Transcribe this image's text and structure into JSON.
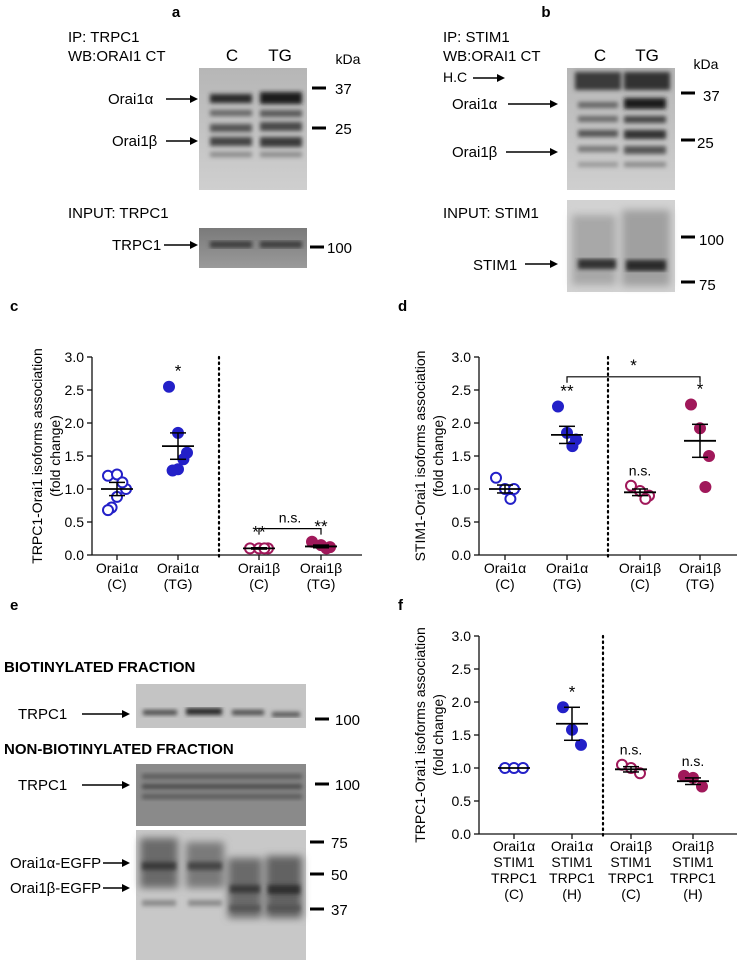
{
  "panels": {
    "a": {
      "letter": "a",
      "ip": "IP: TRPC1",
      "wb": "WB:ORAI1 CT",
      "lanes": [
        "C",
        "TG"
      ],
      "kda": "kDa",
      "bands": [
        "Orai1α",
        "Orai1β"
      ],
      "markers": [
        "37",
        "25"
      ],
      "input": "INPUT: TRPC1",
      "input_band": "TRPC1",
      "input_marker": "100"
    },
    "b": {
      "letter": "b",
      "ip": "IP: STIM1",
      "wb": "WB:ORAI1 CT",
      "lanes": [
        "C",
        "TG"
      ],
      "kda": "kDa",
      "bands": [
        "H.C",
        "Orai1α",
        "Orai1β"
      ],
      "markers": [
        "37",
        "25"
      ],
      "input": "INPUT: STIM1",
      "input_band": "STIM1",
      "input_markers": [
        "100",
        "75"
      ]
    },
    "e": {
      "letter": "e",
      "biot_title": "BIOTINYLATED FRACTION",
      "nonbiot_title": "NON-BIOTINYLATED FRACTION",
      "biot_band": "TRPC1",
      "biot_marker": "100",
      "nonbiot_band": "TRPC1",
      "nonbiot_marker": "100",
      "egfp_bands": [
        "Orai1α-EGFP",
        "Orai1β-EGFP"
      ],
      "egfp_markers": [
        "75",
        "50",
        "37"
      ]
    }
  },
  "colors": {
    "blue": "#2320c8",
    "magenta": "#a0185a",
    "axis": "#111111"
  },
  "chart_data": [
    {
      "panel": "c",
      "type": "scatter",
      "ylabel": "TRPC1-Orai1 isoforms association",
      "ylabel2": "(fold change)",
      "ylim": [
        0,
        3.0
      ],
      "yticks": [
        "0.0",
        "0.5",
        "1.0",
        "1.5",
        "2.0",
        "2.5",
        "3.0"
      ],
      "groups": [
        {
          "label1": "Orai1α",
          "label2": "(C)",
          "color": "blue",
          "filled": false,
          "values": [
            1.2,
            1.22,
            1.0,
            1.1,
            0.88,
            0.72,
            0.68
          ],
          "mean": 1.0,
          "sem": 0.1,
          "sig": ""
        },
        {
          "label1": "Orai1α",
          "label2": "(TG)",
          "color": "blue",
          "filled": true,
          "values": [
            2.55,
            1.85,
            1.55,
            1.45,
            1.3,
            1.28
          ],
          "mean": 1.65,
          "sem": 0.2,
          "sig": "*"
        },
        {
          "label1": "Orai1β",
          "label2": "(C)",
          "color": "magenta",
          "filled": false,
          "values": [
            0.1,
            0.1,
            0.1,
            0.1
          ],
          "mean": 0.1,
          "sem": 0.01,
          "sig": "**"
        },
        {
          "label1": "Orai1β",
          "label2": "(TG)",
          "color": "magenta",
          "filled": true,
          "values": [
            0.2,
            0.15,
            0.12,
            0.1
          ],
          "mean": 0.13,
          "sem": 0.02,
          "sig": "**"
        }
      ],
      "divider_after": 2,
      "bracket": {
        "from": 2,
        "to": 3,
        "y": 0.4,
        "label": "n.s."
      }
    },
    {
      "panel": "d",
      "type": "scatter",
      "ylabel": "STIM1-Orai1 isoforms association",
      "ylabel2": "(fold change)",
      "ylim": [
        0,
        3.0
      ],
      "yticks": [
        "0.0",
        "0.5",
        "1.0",
        "1.5",
        "2.0",
        "2.5",
        "3.0"
      ],
      "groups": [
        {
          "label1": "Orai1α",
          "label2": "(C)",
          "color": "blue",
          "filled": false,
          "values": [
            1.17,
            1.0,
            1.0,
            0.85
          ],
          "mean": 1.0,
          "sem": 0.06,
          "sig": ""
        },
        {
          "label1": "Orai1α",
          "label2": "(TG)",
          "color": "blue",
          "filled": true,
          "values": [
            2.25,
            1.85,
            1.75,
            1.65
          ],
          "mean": 1.82,
          "sem": 0.13,
          "sig": "**"
        },
        {
          "label1": "Orai1β",
          "label2": "(C)",
          "color": "magenta",
          "filled": false,
          "values": [
            1.05,
            0.97,
            0.9,
            0.85
          ],
          "mean": 0.95,
          "sem": 0.05,
          "sig": "n.s."
        },
        {
          "label1": "Orai1β",
          "label2": "(TG)",
          "color": "magenta",
          "filled": true,
          "values": [
            2.28,
            1.92,
            1.5,
            1.03
          ],
          "mean": 1.73,
          "sem": 0.25,
          "sig": "*"
        }
      ],
      "divider_after": 2,
      "bracket": {
        "from": 1,
        "to": 3,
        "y": 2.7,
        "label": "*"
      }
    },
    {
      "panel": "f",
      "type": "scatter",
      "ylabel": "TRPC1-Orai1 isoforms association",
      "ylabel2": "(fold change)",
      "ylim": [
        0,
        3.0
      ],
      "yticks": [
        "0.0",
        "0.5",
        "1.0",
        "1.5",
        "2.0",
        "2.5",
        "3.0"
      ],
      "groups": [
        {
          "label1": "Orai1α",
          "label2": "STIM1",
          "label3": "TRPC1",
          "label4": "(C)",
          "color": "blue",
          "filled": false,
          "values": [
            1.0,
            1.0,
            1.0
          ],
          "mean": 1.0,
          "sem": 0.0,
          "sig": ""
        },
        {
          "label1": "Orai1α",
          "label2": "STIM1",
          "label3": "TRPC1",
          "label4": "(H)",
          "color": "blue",
          "filled": true,
          "values": [
            1.92,
            1.58,
            1.35
          ],
          "mean": 1.67,
          "sem": 0.25,
          "sig": "*"
        },
        {
          "label1": "Orai1β",
          "label2": "STIM1",
          "label3": "TRPC1",
          "label4": "(C)",
          "color": "magenta",
          "filled": false,
          "values": [
            1.05,
            1.0,
            0.92
          ],
          "mean": 0.98,
          "sem": 0.04,
          "sig": "n.s."
        },
        {
          "label1": "Orai1β",
          "label2": "STIM1",
          "label3": "TRPC1",
          "label4": "(H)",
          "color": "magenta",
          "filled": true,
          "values": [
            0.88,
            0.85,
            0.72
          ],
          "mean": 0.8,
          "sem": 0.05,
          "sig": "n.s."
        }
      ],
      "divider_after": 2,
      "bracket": null
    }
  ]
}
